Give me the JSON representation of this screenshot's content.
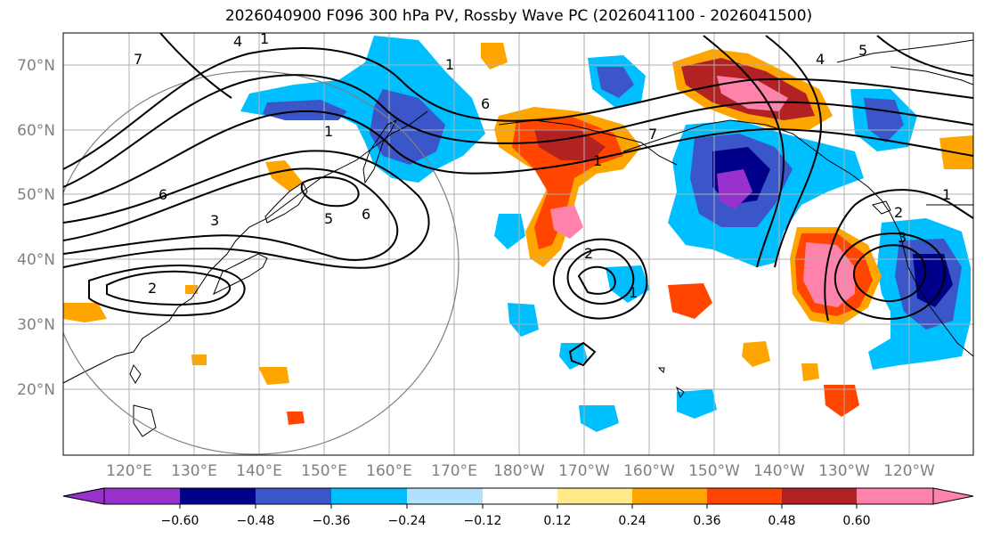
{
  "title": "2026040900 F096 300 hPa PV, Rossby Wave PC (2026041100 - 2026041500)",
  "lat_labels": [
    "70°N",
    "60°N",
    "50°N",
    "40°N",
    "30°N",
    "20°N"
  ],
  "lon_labels": [
    "120°E",
    "130°E",
    "140°E",
    "150°E",
    "160°E",
    "170°E",
    "180°W",
    "170°W",
    "160°W",
    "150°W",
    "140°W",
    "130°W",
    "120°W"
  ],
  "colorbar": {
    "ticks": [
      "−0.60",
      "−0.48",
      "−0.36",
      "−0.24",
      "−0.12",
      "0.12",
      "0.24",
      "0.36",
      "0.48",
      "0.60"
    ],
    "colors": [
      "#9932cc",
      "#00008b",
      "#3a56c8",
      "#00bfff",
      "#b0e2ff",
      "#ffffff",
      "#ffe98a",
      "#ffa500",
      "#ff4500",
      "#b22222",
      "#ff82ab"
    ]
  },
  "contour_labels": [
    "4",
    "1",
    "7",
    "6",
    "1",
    "6",
    "5",
    "6",
    "2",
    "2",
    "1",
    "3",
    "1",
    "2",
    "7",
    "1",
    "4",
    "5",
    "1",
    "3"
  ],
  "colors": {
    "land_edge": "#000000",
    "grid": "#b0b0b0",
    "contour": "#000000"
  }
}
